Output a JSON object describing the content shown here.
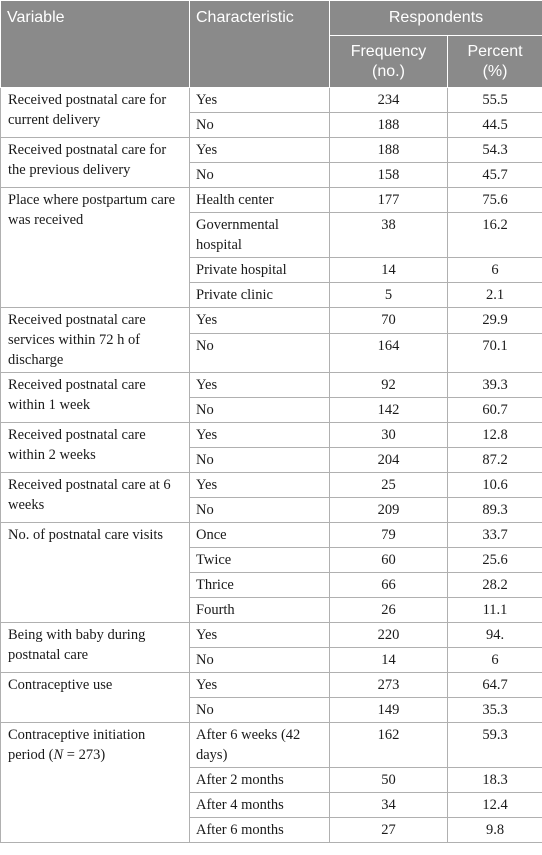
{
  "header": {
    "variable": "Variable",
    "characteristic": "Characteristic",
    "respondents": "Respondents",
    "frequency": "Frequency (no.)",
    "percent": "Percent (%)"
  },
  "groups": [
    {
      "variable": "Received postnatal care for current delivery",
      "rows": [
        {
          "c": "Yes",
          "f": "234",
          "p": "55.5"
        },
        {
          "c": "No",
          "f": "188",
          "p": "44.5"
        }
      ]
    },
    {
      "variable": "Received postnatal care for the previous delivery",
      "rows": [
        {
          "c": "Yes",
          "f": "188",
          "p": "54.3"
        },
        {
          "c": "No",
          "f": "158",
          "p": "45.7"
        }
      ]
    },
    {
      "variable": "Place where postpartum care was received",
      "rows": [
        {
          "c": "Health center",
          "f": "177",
          "p": "75.6"
        },
        {
          "c": "Governmental hospital",
          "f": "38",
          "p": "16.2"
        },
        {
          "c": "Private hospital",
          "f": "14",
          "p": "6"
        },
        {
          "c": "Private clinic",
          "f": "5",
          "p": "2.1"
        }
      ]
    },
    {
      "variable": "Received postnatal care services within 72 h of discharge",
      "rows": [
        {
          "c": "Yes",
          "f": "70",
          "p": "29.9"
        },
        {
          "c": "No",
          "f": "164",
          "p": "70.1"
        }
      ]
    },
    {
      "variable": "Received postnatal care within 1 week",
      "rows": [
        {
          "c": "Yes",
          "f": "92",
          "p": "39.3"
        },
        {
          "c": "No",
          "f": "142",
          "p": "60.7"
        }
      ]
    },
    {
      "variable": "Received postnatal care within 2 weeks",
      "rows": [
        {
          "c": "Yes",
          "f": "30",
          "p": "12.8"
        },
        {
          "c": "No",
          "f": "204",
          "p": "87.2"
        }
      ]
    },
    {
      "variable": "Received postnatal care at 6 weeks",
      "rows": [
        {
          "c": "Yes",
          "f": "25",
          "p": "10.6"
        },
        {
          "c": "No",
          "f": "209",
          "p": "89.3"
        }
      ]
    },
    {
      "variable": "No. of postnatal care visits",
      "rows": [
        {
          "c": "Once",
          "f": "79",
          "p": "33.7"
        },
        {
          "c": "Twice",
          "f": "60",
          "p": "25.6"
        },
        {
          "c": "Thrice",
          "f": "66",
          "p": "28.2"
        },
        {
          "c": "Fourth",
          "f": "26",
          "p": "11.1"
        }
      ]
    },
    {
      "variable": "Being with baby during postnatal care",
      "rows": [
        {
          "c": "Yes",
          "f": "220",
          "p": "94."
        },
        {
          "c": "No",
          "f": "14",
          "p": "6"
        }
      ]
    },
    {
      "variable": "Contraceptive use",
      "rows": [
        {
          "c": "Yes",
          "f": "273",
          "p": "64.7"
        },
        {
          "c": "No",
          "f": "149",
          "p": "35.3"
        }
      ]
    },
    {
      "variable": "Contraceptive initiation period (N = 273)",
      "rows": [
        {
          "c": "After 6 weeks (42 days)",
          "f": "162",
          "p": "59.3"
        },
        {
          "c": "After 2 months",
          "f": "50",
          "p": "18.3"
        },
        {
          "c": "After 4 months",
          "f": "34",
          "p": "12.4"
        },
        {
          "c": "After 6 months",
          "f": "27",
          "p": "9.8"
        }
      ]
    }
  ]
}
